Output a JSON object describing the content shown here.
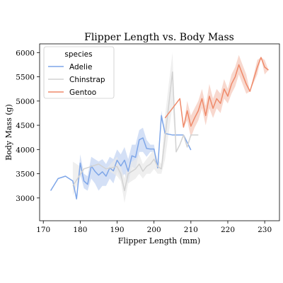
{
  "chart_data": {
    "type": "line",
    "title": "Flipper Length vs. Body Mass",
    "xlabel": "Flipper Length (mm)",
    "ylabel": "Body Mass (g)",
    "xlim": [
      169,
      234
    ],
    "ylim": [
      2530,
      6180
    ],
    "xticks": [
      170,
      180,
      190,
      200,
      210,
      220,
      230
    ],
    "yticks": [
      3000,
      3500,
      4000,
      4500,
      5000,
      5500,
      6000
    ],
    "grid": false,
    "legend": {
      "title": "species",
      "position": "top-left"
    },
    "series": [
      {
        "name": "Adelie",
        "color": "#7ea6e8",
        "band_color": "#c5d6f3",
        "x": [
          172,
          174,
          176,
          178,
          179,
          180,
          181,
          182,
          183,
          184,
          185,
          186,
          187,
          188,
          189,
          190,
          191,
          192,
          193,
          194,
          195,
          196,
          197,
          198,
          199,
          200,
          201,
          202,
          203,
          205,
          206,
          208,
          210
        ],
        "y": [
          3150,
          3400,
          3450,
          3350,
          2980,
          3720,
          3350,
          3280,
          3660,
          3550,
          3470,
          3540,
          3450,
          3620,
          3560,
          3780,
          3660,
          3780,
          3550,
          3870,
          3840,
          4200,
          4240,
          4020,
          4010,
          4010,
          3620,
          4700,
          4330,
          4300,
          4300,
          4300,
          3990
        ],
        "low": [
          3150,
          3400,
          3450,
          3350,
          2980,
          3500,
          3200,
          3150,
          3400,
          3300,
          3150,
          3250,
          3250,
          3400,
          3300,
          3550,
          3400,
          3500,
          3300,
          3650,
          3600,
          3950,
          3950,
          3850,
          3950,
          3950,
          3620,
          4600,
          4330,
          4300,
          4300,
          4300,
          3990
        ],
        "high": [
          3150,
          3400,
          3450,
          3350,
          2980,
          3900,
          3500,
          3450,
          3850,
          3800,
          3750,
          3800,
          3700,
          3850,
          3800,
          4000,
          3900,
          4050,
          3800,
          4100,
          4100,
          4400,
          4450,
          4200,
          4100,
          4100,
          3620,
          4800,
          4330,
          4300,
          4300,
          4300,
          3990
        ]
      },
      {
        "name": "Chinstrap",
        "color": "#d2d2d2",
        "band_color": "#e9e9e9",
        "x": [
          178,
          181,
          185,
          187,
          190,
          191,
          192,
          193,
          195,
          196,
          197,
          198,
          199,
          200,
          201,
          202,
          203,
          205,
          206,
          207,
          208,
          209,
          210,
          212
        ],
        "y": [
          3250,
          3600,
          3700,
          3600,
          3650,
          3500,
          3150,
          3500,
          3600,
          3700,
          3550,
          3650,
          3700,
          3800,
          3650,
          3600,
          4250,
          5600,
          3950,
          4100,
          4300,
          4050,
          4300,
          4300
        ],
        "low": [
          3050,
          3600,
          3700,
          3600,
          3450,
          3350,
          2900,
          3300,
          3400,
          3500,
          3400,
          3500,
          3500,
          3600,
          3500,
          3500,
          3800,
          4900,
          3950,
          4100,
          4300,
          4050,
          4300,
          4300
        ],
        "high": [
          3750,
          3600,
          3700,
          3600,
          3850,
          3650,
          3400,
          3700,
          3800,
          3900,
          3700,
          3800,
          3900,
          4000,
          3800,
          3700,
          4700,
          6000,
          3950,
          4100,
          4300,
          4050,
          4300,
          4300
        ]
      },
      {
        "name": "Gentoo",
        "color": "#ef8a6a",
        "band_color": "#f6cbbd",
        "x": [
          203,
          207,
          208,
          209,
          210,
          211,
          212,
          213,
          214,
          215,
          216,
          217,
          218,
          219,
          220,
          221,
          222,
          223,
          224,
          225,
          226,
          228,
          229,
          230,
          231
        ],
        "y": [
          4650,
          5050,
          4460,
          4800,
          4480,
          4650,
          4800,
          5050,
          4700,
          5100,
          4850,
          5050,
          4950,
          5250,
          5100,
          5350,
          5500,
          5750,
          5550,
          5350,
          5200,
          5700,
          5900,
          5700,
          5640
        ],
        "low": [
          4650,
          5050,
          4460,
          4600,
          4250,
          4450,
          4600,
          4850,
          4500,
          4850,
          4650,
          4850,
          4750,
          5050,
          4950,
          5150,
          5300,
          5550,
          5350,
          5150,
          5200,
          5550,
          5900,
          5550,
          5640
        ],
        "high": [
          4650,
          5050,
          4460,
          5000,
          4700,
          4850,
          5000,
          5250,
          4900,
          5350,
          5050,
          5250,
          5150,
          5450,
          5250,
          5550,
          5700,
          5950,
          5750,
          5550,
          5200,
          5850,
          5900,
          5850,
          5640
        ]
      }
    ]
  }
}
